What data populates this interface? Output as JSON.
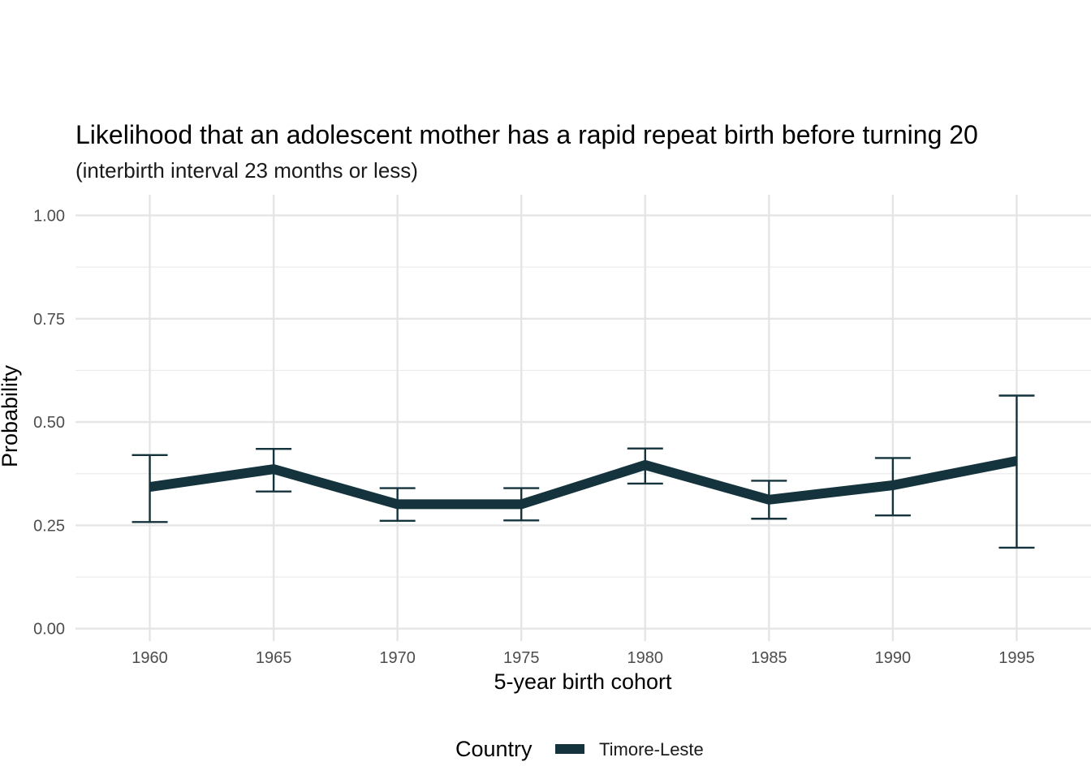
{
  "chart_data": {
    "type": "line",
    "title": "Likelihood that an adolescent mother has a rapid repeat birth before turning 20",
    "subtitle": "(interbirth interval 23 months or less)",
    "xlabel": "5-year birth cohort",
    "ylabel": "Probability",
    "x": [
      1960,
      1965,
      1970,
      1975,
      1980,
      1985,
      1990,
      1995
    ],
    "x_tick_labels": [
      "1960",
      "1965",
      "1970",
      "1975",
      "1980",
      "1985",
      "1990",
      "1995"
    ],
    "xlim": [
      1957,
      1998
    ],
    "ylim": [
      -0.03,
      1.05
    ],
    "y_ticks": [
      0.0,
      0.25,
      0.5,
      0.75,
      1.0
    ],
    "y_tick_labels": [
      "0.00",
      "0.25",
      "0.50",
      "0.75",
      "1.00"
    ],
    "y_minor_ticks": [
      0.125,
      0.375,
      0.625,
      0.875
    ],
    "grid": true,
    "legend": {
      "title": "Country",
      "position": "bottom"
    },
    "series": [
      {
        "name": "Timore-Leste",
        "color": "#14333d",
        "values": [
          0.343,
          0.386,
          0.301,
          0.301,
          0.396,
          0.312,
          0.347,
          0.406
        ],
        "lower": [
          0.258,
          0.332,
          0.261,
          0.262,
          0.351,
          0.266,
          0.274,
          0.196
        ],
        "upper": [
          0.42,
          0.435,
          0.34,
          0.34,
          0.436,
          0.358,
          0.413,
          0.564
        ]
      }
    ]
  }
}
